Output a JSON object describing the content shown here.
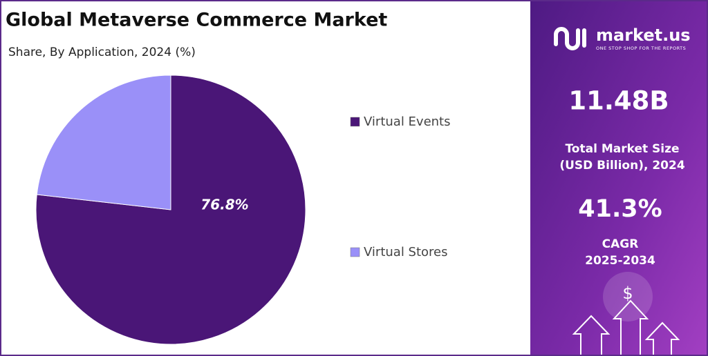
{
  "chart_data": {
    "type": "pie",
    "title": "Global Metaverse Commerce Market",
    "subtitle": "Share, By Application, 2024 (%)",
    "categories": [
      "Virtual Events",
      "Virtual Stores"
    ],
    "values": [
      76.8,
      23.2
    ],
    "value_labels": [
      "76.8%",
      null
    ],
    "colors": [
      "#4a1677",
      "#9a90f8"
    ],
    "legend": "right"
  },
  "panel": {
    "logo": "market.us",
    "tagline": "ONE STOP SHOP FOR THE REPORTS",
    "icon_symbol": "$",
    "market_size": "11.48B",
    "market_size_label": [
      "Total Market Size",
      "(USD Billion), 2024"
    ],
    "cagr": "41.3%",
    "cagr_label": [
      "CAGR",
      "2025-2034"
    ]
  }
}
